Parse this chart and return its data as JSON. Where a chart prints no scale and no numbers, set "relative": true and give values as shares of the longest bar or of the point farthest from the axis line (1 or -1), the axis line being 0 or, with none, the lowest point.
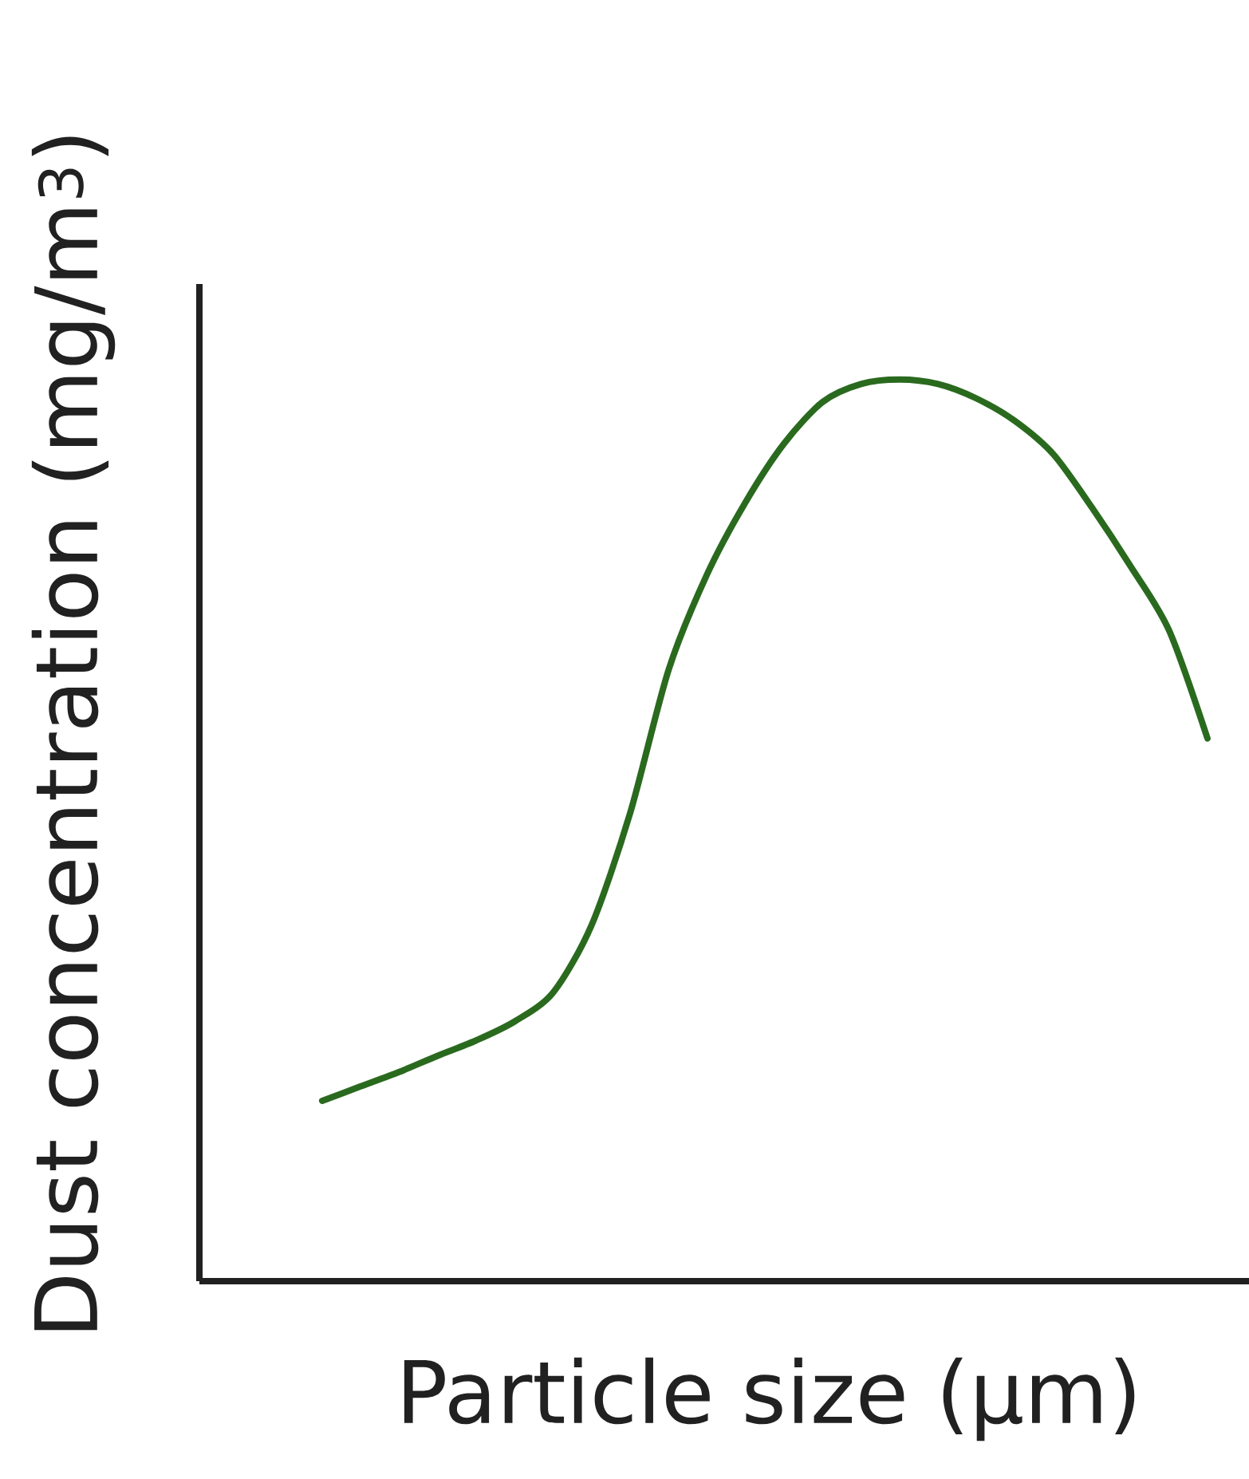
{
  "chart_data": {
    "type": "line",
    "relative": true,
    "xlabel": "Particle size (μm)",
    "ylabel": "Dust concentration (mg/m$^{3}$)",
    "categories": [
      null,
      null,
      null,
      null,
      null,
      null,
      null,
      null,
      null,
      null,
      null,
      null,
      null,
      null,
      null,
      null,
      null,
      null,
      null,
      null,
      null,
      null,
      null,
      null
    ],
    "series": [
      {
        "color": "#2a6a1e",
        "values": [
          0.2,
          0.216,
          0.232,
          0.25,
          0.267,
          0.288,
          0.32,
          0.395,
          0.519,
          0.678,
          0.784,
          0.864,
          0.929,
          0.975,
          0.995,
          1,
          0.995,
          0.979,
          0.954,
          0.917,
          0.858,
          0.793,
          0.722,
          0.602
        ]
      }
    ],
    "marker": "none",
    "line_style": "solid"
  }
}
